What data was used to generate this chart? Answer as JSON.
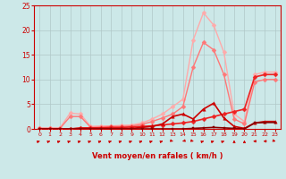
{
  "bg_color": "#cce8e8",
  "grid_color": "#b0c8c8",
  "xlabel": "Vent moyen/en rafales ( km/h )",
  "xlabel_color": "#cc0000",
  "tick_color": "#cc0000",
  "axis_color": "#cc0000",
  "xlim": [
    -0.5,
    23.5
  ],
  "ylim": [
    0,
    25
  ],
  "xticks": [
    0,
    1,
    2,
    3,
    4,
    5,
    6,
    7,
    8,
    9,
    10,
    11,
    12,
    13,
    14,
    15,
    16,
    17,
    18,
    19,
    20,
    21,
    22,
    23
  ],
  "yticks": [
    0,
    5,
    10,
    15,
    20,
    25
  ],
  "series": [
    {
      "x": [
        0,
        1,
        2,
        3,
        4,
        5,
        6,
        7,
        8,
        9,
        10,
        11,
        12,
        13,
        14,
        15,
        16,
        17,
        18,
        19,
        20,
        21,
        22,
        23
      ],
      "y": [
        0.2,
        0.2,
        0.2,
        3.2,
        3.0,
        0.5,
        0.6,
        0.6,
        0.7,
        0.8,
        1.2,
        2.0,
        3.0,
        4.5,
        6.0,
        18.0,
        23.5,
        21.0,
        15.5,
        3.0,
        1.5,
        11.0,
        11.5,
        11.5
      ],
      "color": "#ffaaaa",
      "lw": 1.0,
      "marker": "D",
      "ms": 2.5
    },
    {
      "x": [
        0,
        1,
        2,
        3,
        4,
        5,
        6,
        7,
        8,
        9,
        10,
        11,
        12,
        13,
        14,
        15,
        16,
        17,
        18,
        19,
        20,
        21,
        22,
        23
      ],
      "y": [
        0.1,
        0.1,
        0.1,
        2.5,
        2.5,
        0.3,
        0.4,
        0.5,
        0.5,
        0.6,
        0.9,
        1.5,
        2.2,
        3.0,
        4.5,
        12.5,
        17.5,
        16.0,
        11.0,
        2.0,
        1.0,
        9.5,
        10.0,
        10.0
      ],
      "color": "#ff7777",
      "lw": 1.0,
      "marker": "D",
      "ms": 2.5
    },
    {
      "x": [
        0,
        1,
        2,
        3,
        4,
        5,
        6,
        7,
        8,
        9,
        10,
        11,
        12,
        13,
        14,
        15,
        16,
        17,
        18,
        19,
        20,
        21,
        22,
        23
      ],
      "y": [
        0.0,
        0.0,
        0.0,
        0.0,
        0.2,
        0.2,
        0.2,
        0.3,
        0.3,
        0.4,
        0.5,
        0.6,
        0.8,
        1.0,
        1.2,
        1.5,
        2.0,
        2.5,
        3.0,
        3.5,
        4.0,
        10.5,
        11.0,
        11.0
      ],
      "color": "#ee2222",
      "lw": 1.2,
      "marker": "D",
      "ms": 2.5
    },
    {
      "x": [
        0,
        1,
        2,
        3,
        4,
        5,
        6,
        7,
        8,
        9,
        10,
        11,
        12,
        13,
        14,
        15,
        16,
        17,
        18,
        19,
        20,
        21,
        22,
        23
      ],
      "y": [
        0.0,
        0.0,
        0.0,
        0.0,
        0.1,
        0.1,
        0.1,
        0.1,
        0.1,
        0.1,
        0.3,
        0.5,
        1.0,
        2.5,
        3.0,
        2.0,
        4.0,
        5.2,
        2.2,
        0.5,
        0.1,
        1.2,
        1.5,
        1.5
      ],
      "color": "#cc0000",
      "lw": 1.2,
      "marker": "^",
      "ms": 2.5
    },
    {
      "x": [
        0,
        1,
        2,
        3,
        4,
        5,
        6,
        7,
        8,
        9,
        10,
        11,
        12,
        13,
        14,
        15,
        16,
        17,
        18,
        19,
        20,
        21,
        22,
        23
      ],
      "y": [
        0.0,
        0.0,
        0.0,
        0.0,
        0.0,
        0.0,
        0.0,
        0.0,
        0.0,
        0.0,
        0.0,
        0.0,
        0.0,
        0.0,
        0.0,
        0.1,
        0.2,
        0.3,
        0.2,
        0.1,
        0.0,
        1.2,
        1.3,
        1.3
      ],
      "color": "#880000",
      "lw": 1.2,
      "marker": "s",
      "ms": 2.0
    }
  ],
  "wind_arrow_angles": [
    45,
    45,
    45,
    45,
    45,
    45,
    45,
    45,
    45,
    45,
    45,
    45,
    45,
    135,
    225,
    135,
    45,
    45,
    45,
    0,
    0,
    270,
    270,
    135
  ],
  "wind_arrow_color": "#cc0000"
}
